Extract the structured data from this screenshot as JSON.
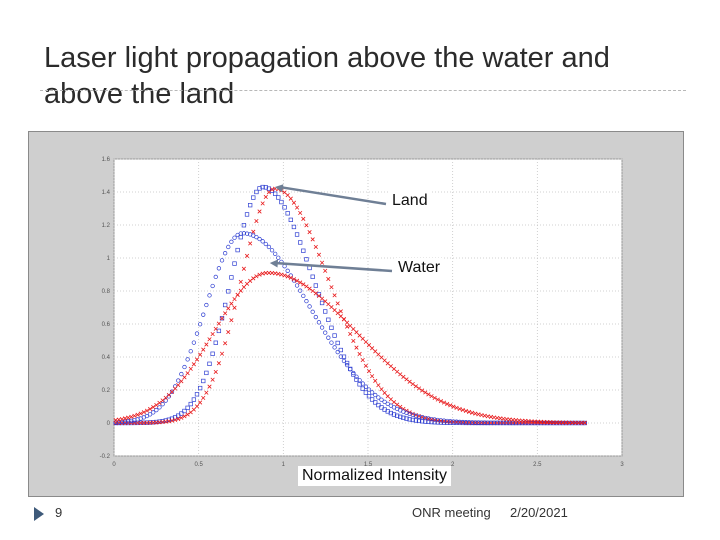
{
  "slide": {
    "title": "Laser light propagation above the water and above the  land",
    "number": "9",
    "footer": "ONR meeting",
    "date": "2/20/2021"
  },
  "colors": {
    "red": "#e8191b",
    "blue": "#2f3fd2",
    "frame": "#cfcfcf"
  },
  "icons": {
    "footer_marker": "triangle-right-icon"
  },
  "chart_data": {
    "type": "scatter",
    "title": "",
    "xlabel": "",
    "ylabel": "",
    "xlim": [
      0,
      3
    ],
    "ylim": [
      -0.2,
      1.6
    ],
    "x_ticks": [
      "0",
      "0.5",
      "1",
      "1.5",
      "2",
      "2.5",
      "3"
    ],
    "y_ticks": [
      "-0.2",
      "0",
      "0.2",
      "0.4",
      "0.6",
      "0.8",
      "1",
      "1.2",
      "1.4",
      "1.6"
    ],
    "grid": true,
    "series": [
      {
        "color": "#2f3fd2",
        "marker": "square",
        "mu": 0.88,
        "sigma_left": 0.19,
        "sigma_right": 0.3,
        "peak": 1.43
      },
      {
        "color": "#e8191b",
        "marker": "cross",
        "mu": 0.95,
        "sigma_left": 0.2,
        "sigma_right": 0.32,
        "peak": 1.42
      },
      {
        "color": "#2f3fd2",
        "marker": "circle",
        "mu": 0.76,
        "sigma_left": 0.22,
        "sigma_right": 0.4,
        "peak": 1.15
      },
      {
        "color": "#e8191b",
        "marker": "cross",
        "mu": 0.91,
        "sigma_left": 0.32,
        "sigma_right": 0.52,
        "peak": 0.91
      }
    ],
    "annotations": [
      {
        "text": "Land",
        "points_to": {
          "x": 0.95,
          "y": 1.43
        }
      },
      {
        "text": "Water",
        "points_to": {
          "x": 0.92,
          "y": 0.97
        }
      },
      {
        "text": "Normalized Intensity",
        "position": "bottom-center"
      }
    ]
  }
}
